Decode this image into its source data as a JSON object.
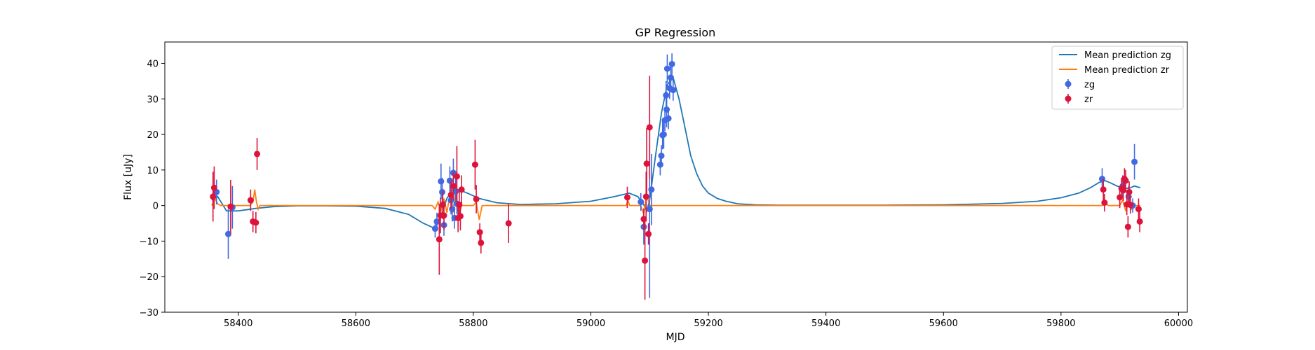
{
  "chart_data": {
    "type": "scatter",
    "title": "GP Regression",
    "xlabel": "MJD",
    "ylabel": "Flux [uJy]",
    "xlim": [
      58275,
      60015
    ],
    "ylim": [
      -30,
      46
    ],
    "xticks": [
      58400,
      58600,
      58800,
      59000,
      59200,
      59400,
      59600,
      59800,
      60000
    ],
    "yticks": [
      -30,
      -20,
      -10,
      0,
      10,
      20,
      30,
      40
    ],
    "grid": false,
    "legend_position": "top-right",
    "legend": [
      {
        "label": "Mean prediction zg",
        "kind": "line",
        "color": "#1f77b4"
      },
      {
        "label": "Mean prediction zr",
        "kind": "line",
        "color": "#ff7f0e"
      },
      {
        "label": "zg",
        "kind": "errorbar",
        "color": "#4169e1"
      },
      {
        "label": "zr",
        "kind": "errorbar",
        "color": "#dc143c"
      }
    ],
    "series": [
      {
        "name": "Mean prediction zg",
        "kind": "line",
        "color": "#1f77b4",
        "x": [
          58355,
          58365,
          58380,
          58400,
          58430,
          58460,
          58500,
          58550,
          58600,
          58650,
          58690,
          58715,
          58735,
          58745,
          58755,
          58765,
          58775,
          58790,
          58810,
          58840,
          58880,
          58940,
          59000,
          59040,
          59065,
          59080,
          59090,
          59095,
          59100,
          59110,
          59120,
          59130,
          59140,
          59150,
          59160,
          59170,
          59180,
          59190,
          59200,
          59215,
          59230,
          59250,
          59280,
          59320,
          59400,
          59500,
          59600,
          59700,
          59760,
          59800,
          59830,
          59850,
          59865,
          59875,
          59885,
          59895,
          59905,
          59915,
          59925,
          59935
        ],
        "y": [
          1.5,
          2.5,
          -1.5,
          -1.5,
          -0.8,
          -0.3,
          -0.1,
          -0.1,
          -0.2,
          -0.8,
          -2.5,
          -5,
          -6.5,
          -3,
          2,
          4.5,
          4.5,
          3.5,
          2,
          0.8,
          0.3,
          0.5,
          1.2,
          2.5,
          3.5,
          2.5,
          0.2,
          -1.5,
          1.5,
          14,
          26,
          34,
          36,
          30,
          22,
          14,
          9,
          5.5,
          3.5,
          2,
          1.2,
          0.5,
          0.2,
          0.1,
          0.1,
          0.1,
          0.2,
          0.6,
          1.2,
          2.2,
          3.5,
          5,
          6.5,
          7,
          6.3,
          5.5,
          5,
          4.8,
          5.5,
          5
        ]
      },
      {
        "name": "Mean prediction zr",
        "kind": "line",
        "color": "#ff7f0e",
        "x": [
          58355,
          58360,
          58365,
          58370,
          58420,
          58425,
          58428,
          58431,
          58434,
          58437,
          58440,
          58730,
          58735,
          58740,
          58745,
          58750,
          58755,
          58760,
          58765,
          58770,
          58775,
          58780,
          58800,
          58805,
          58810,
          58815,
          58820,
          59060,
          59063,
          59066,
          59085,
          59090,
          59095,
          59100,
          59105,
          59870,
          59875,
          59880,
          59900,
          59905,
          59910,
          59915,
          59920,
          59925,
          59935
        ],
        "y": [
          0,
          2,
          0.5,
          0,
          0,
          1,
          4.5,
          1,
          -1,
          0,
          0,
          0,
          -1,
          1,
          -1.5,
          2,
          -2,
          3,
          -2,
          4,
          -3,
          0,
          0,
          1,
          -4,
          0,
          0,
          0,
          1.5,
          0,
          0,
          -2.5,
          3,
          0,
          0,
          0,
          1.2,
          0,
          0,
          1.5,
          -1.5,
          2,
          -1,
          0,
          0
        ]
      },
      {
        "name": "zg",
        "kind": "errorbar",
        "color": "#4169e1",
        "points": [
          {
            "x": 58363,
            "y": 3.8,
            "err": 3.5
          },
          {
            "x": 58383,
            "y": -8,
            "err": 7
          },
          {
            "x": 58390,
            "y": -0.5,
            "err": 6
          },
          {
            "x": 58735,
            "y": -6.5,
            "err": 2.5
          },
          {
            "x": 58738,
            "y": -4.5,
            "err": 2.5
          },
          {
            "x": 58745,
            "y": 6.8,
            "err": 5
          },
          {
            "x": 58747,
            "y": 3.8,
            "err": 4
          },
          {
            "x": 58750,
            "y": -5.5,
            "err": 3
          },
          {
            "x": 58760,
            "y": 7,
            "err": 4
          },
          {
            "x": 58762,
            "y": 1.5,
            "err": 4
          },
          {
            "x": 58764,
            "y": -1,
            "err": 3.5
          },
          {
            "x": 58766,
            "y": 9.2,
            "err": 4
          },
          {
            "x": 58768,
            "y": -3.5,
            "err": 3
          },
          {
            "x": 58770,
            "y": 4,
            "err": 4
          },
          {
            "x": 58772,
            "y": 0.5,
            "err": 3
          },
          {
            "x": 59085,
            "y": 1,
            "err": 2.5
          },
          {
            "x": 59090,
            "y": -6,
            "err": 5
          },
          {
            "x": 59100,
            "y": -1,
            "err": 25
          },
          {
            "x": 59103,
            "y": 4.5,
            "err": 10
          },
          {
            "x": 59118,
            "y": 11.5,
            "err": 3
          },
          {
            "x": 59120,
            "y": 14,
            "err": 3
          },
          {
            "x": 59122,
            "y": 19.8,
            "err": 4
          },
          {
            "x": 59124,
            "y": 20,
            "err": 4
          },
          {
            "x": 59126,
            "y": 24,
            "err": 3
          },
          {
            "x": 59128,
            "y": 31,
            "err": 4
          },
          {
            "x": 59129,
            "y": 27,
            "err": 5
          },
          {
            "x": 59130,
            "y": 38.5,
            "err": 4
          },
          {
            "x": 59132,
            "y": 24.5,
            "err": 3
          },
          {
            "x": 59134,
            "y": 33,
            "err": 3
          },
          {
            "x": 59136,
            "y": 36,
            "err": 4
          },
          {
            "x": 59138,
            "y": 39.8,
            "err": 3
          },
          {
            "x": 59140,
            "y": 32.5,
            "err": 3
          },
          {
            "x": 59870,
            "y": 7.5,
            "err": 3
          },
          {
            "x": 59905,
            "y": 5.5,
            "err": 3
          },
          {
            "x": 59915,
            "y": 2.5,
            "err": 3
          },
          {
            "x": 59922,
            "y": 0,
            "err": 2
          },
          {
            "x": 59925,
            "y": 12.3,
            "err": 5
          }
        ]
      },
      {
        "name": "zr",
        "kind": "errorbar",
        "color": "#dc143c",
        "points": [
          {
            "x": 58357,
            "y": 2.5,
            "err": 7
          },
          {
            "x": 58359,
            "y": 5,
            "err": 6
          },
          {
            "x": 58387,
            "y": -0.3,
            "err": 7.5
          },
          {
            "x": 58421,
            "y": 1.5,
            "err": 3
          },
          {
            "x": 58425,
            "y": -4.5,
            "err": 3
          },
          {
            "x": 58430,
            "y": -4.8,
            "err": 3
          },
          {
            "x": 58432,
            "y": 14.5,
            "err": 4.5
          },
          {
            "x": 58742,
            "y": -9.5,
            "err": 10
          },
          {
            "x": 58744,
            "y": -2.8,
            "err": 5
          },
          {
            "x": 58748,
            "y": 0.2,
            "err": 4
          },
          {
            "x": 58750,
            "y": -2.8,
            "err": 4
          },
          {
            "x": 58762,
            "y": 3,
            "err": 4
          },
          {
            "x": 58766,
            "y": 5.5,
            "err": 4
          },
          {
            "x": 58772,
            "y": 8.2,
            "err": 8.5
          },
          {
            "x": 58774,
            "y": -3.5,
            "err": 4
          },
          {
            "x": 58776,
            "y": 0.2,
            "err": 4
          },
          {
            "x": 58778,
            "y": -3,
            "err": 4
          },
          {
            "x": 58780,
            "y": 4.5,
            "err": 4
          },
          {
            "x": 58803,
            "y": 11.5,
            "err": 7
          },
          {
            "x": 58805,
            "y": 1.8,
            "err": 4
          },
          {
            "x": 58811,
            "y": -7.5,
            "err": 2.5
          },
          {
            "x": 58813,
            "y": -10.5,
            "err": 3
          },
          {
            "x": 58860,
            "y": -5,
            "err": 5.5
          },
          {
            "x": 59062,
            "y": 2.3,
            "err": 3
          },
          {
            "x": 59090,
            "y": -3.8,
            "err": 3
          },
          {
            "x": 59092,
            "y": -15.5,
            "err": 11
          },
          {
            "x": 59094,
            "y": 2.5,
            "err": 7
          },
          {
            "x": 59095,
            "y": 11.8,
            "err": 10
          },
          {
            "x": 59098,
            "y": -8,
            "err": 3
          },
          {
            "x": 59100,
            "y": 22,
            "err": 14.5
          },
          {
            "x": 59872,
            "y": 4.5,
            "err": 3
          },
          {
            "x": 59874,
            "y": 0.8,
            "err": 2.5
          },
          {
            "x": 59900,
            "y": 2.3,
            "err": 3
          },
          {
            "x": 59903,
            "y": 4.8,
            "err": 3
          },
          {
            "x": 59906,
            "y": 4.3,
            "err": 3
          },
          {
            "x": 59908,
            "y": 7.5,
            "err": 3
          },
          {
            "x": 59910,
            "y": 7,
            "err": 3
          },
          {
            "x": 59912,
            "y": 0.3,
            "err": 3
          },
          {
            "x": 59914,
            "y": -6,
            "err": 3
          },
          {
            "x": 59916,
            "y": 3.8,
            "err": 3
          },
          {
            "x": 59918,
            "y": 0.2,
            "err": 2.5
          },
          {
            "x": 59932,
            "y": -1,
            "err": 3
          },
          {
            "x": 59934,
            "y": -4.5,
            "err": 3
          }
        ]
      }
    ]
  }
}
